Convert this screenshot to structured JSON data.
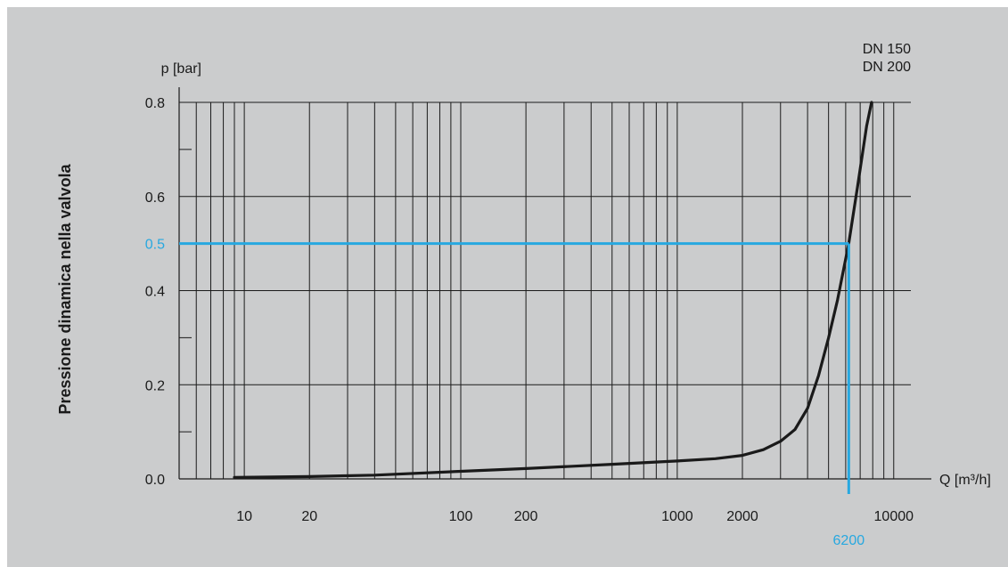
{
  "chart_data": {
    "type": "line",
    "title": "",
    "ylabel": "Pressione dinamica nella valvola",
    "y_unit_label": "p [bar]",
    "x_unit_label": "Q [m³/h]",
    "x_scale": "log",
    "xlim": [
      5,
      12000
    ],
    "ylim": [
      0,
      0.8
    ],
    "x_ticks": [
      {
        "value": 10,
        "label": "10"
      },
      {
        "value": 20,
        "label": "20"
      },
      {
        "value": 100,
        "label": "100"
      },
      {
        "value": 200,
        "label": "200"
      },
      {
        "value": 1000,
        "label": "1000"
      },
      {
        "value": 2000,
        "label": "2000"
      },
      {
        "value": 10000,
        "label": "10000"
      }
    ],
    "y_ticks": [
      {
        "value": 0.0,
        "label": "0.0"
      },
      {
        "value": 0.2,
        "label": "0.2"
      },
      {
        "value": 0.4,
        "label": "0.4"
      },
      {
        "value": 0.5,
        "label": "0.5",
        "highlight": true
      },
      {
        "value": 0.6,
        "label": "0.6"
      },
      {
        "value": 0.8,
        "label": "0.8"
      }
    ],
    "y_minor_ticks": [
      0.1,
      0.3,
      0.5,
      0.7
    ],
    "grid": true,
    "series": [
      {
        "name": "DN 150",
        "label_line2": "DN 200",
        "color": "#1a1a1a",
        "points": [
          {
            "x": 9,
            "y": 0.003
          },
          {
            "x": 20,
            "y": 0.005
          },
          {
            "x": 40,
            "y": 0.008
          },
          {
            "x": 100,
            "y": 0.016
          },
          {
            "x": 200,
            "y": 0.022
          },
          {
            "x": 500,
            "y": 0.031
          },
          {
            "x": 1000,
            "y": 0.038
          },
          {
            "x": 1500,
            "y": 0.043
          },
          {
            "x": 2000,
            "y": 0.05
          },
          {
            "x": 2500,
            "y": 0.062
          },
          {
            "x": 3000,
            "y": 0.08
          },
          {
            "x": 3500,
            "y": 0.105
          },
          {
            "x": 4000,
            "y": 0.15
          },
          {
            "x": 4500,
            "y": 0.22
          },
          {
            "x": 5000,
            "y": 0.3
          },
          {
            "x": 5500,
            "y": 0.38
          },
          {
            "x": 6200,
            "y": 0.5
          },
          {
            "x": 6800,
            "y": 0.62
          },
          {
            "x": 7500,
            "y": 0.75
          },
          {
            "x": 7900,
            "y": 0.8
          }
        ]
      }
    ],
    "annotation": {
      "x": 6200,
      "y": 0.5,
      "x_label": "6200",
      "y_label": "0.5",
      "color": "#27a8e0"
    },
    "colors": {
      "background": "#cbcccd",
      "grid": "#1a1a1a",
      "curve": "#1a1a1a",
      "highlight": "#27a8e0"
    }
  }
}
